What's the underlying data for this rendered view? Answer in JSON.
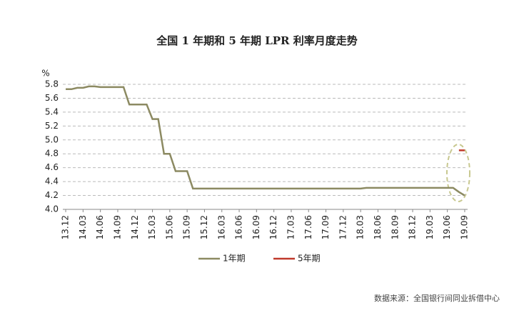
{
  "chart_data": {
    "type": "line",
    "title": "全国 1 年期和 5 年期 LPR 利率月度走势",
    "y_unit": "%",
    "source": "数据来源：全国银行间同业拆借中心",
    "categories": [
      "13.12",
      null,
      null,
      "14.03",
      null,
      null,
      "14.06",
      null,
      null,
      "14.09",
      null,
      null,
      "14.12",
      null,
      null,
      "15.03",
      null,
      null,
      "15.06",
      null,
      null,
      "15.09",
      null,
      null,
      "15.12",
      null,
      null,
      "16.03",
      null,
      null,
      "16.06",
      null,
      null,
      "16.09",
      null,
      null,
      "16.12",
      null,
      null,
      "17.03",
      null,
      null,
      "17.06",
      null,
      null,
      "17.09",
      null,
      null,
      "17.12",
      null,
      null,
      "18.03",
      null,
      null,
      "18.06",
      null,
      null,
      "18.09",
      null,
      null,
      "18.12",
      null,
      null,
      "19.03",
      null,
      null,
      "19.06",
      null,
      null,
      "19.09"
    ],
    "series": [
      {
        "name": "1年期",
        "color": "#8c8a62",
        "values": [
          5.73,
          5.73,
          5.75,
          5.75,
          5.77,
          5.77,
          5.76,
          5.76,
          5.76,
          5.76,
          5.76,
          5.51,
          5.51,
          5.51,
          5.51,
          5.3,
          5.3,
          4.8,
          4.8,
          4.55,
          4.55,
          4.55,
          4.3,
          4.3,
          4.3,
          4.3,
          4.3,
          4.3,
          4.3,
          4.3,
          4.3,
          4.3,
          4.3,
          4.3,
          4.3,
          4.3,
          4.3,
          4.3,
          4.3,
          4.3,
          4.3,
          4.3,
          4.3,
          4.3,
          4.3,
          4.3,
          4.3,
          4.3,
          4.3,
          4.3,
          4.3,
          4.3,
          4.31,
          4.31,
          4.31,
          4.31,
          4.31,
          4.31,
          4.31,
          4.31,
          4.31,
          4.31,
          4.31,
          4.31,
          4.31,
          4.31,
          4.31,
          4.31,
          4.25,
          4.2
        ]
      },
      {
        "name": "5年期",
        "color": "#c0392b",
        "values": [
          null,
          null,
          null,
          null,
          null,
          null,
          null,
          null,
          null,
          null,
          null,
          null,
          null,
          null,
          null,
          null,
          null,
          null,
          null,
          null,
          null,
          null,
          null,
          null,
          null,
          null,
          null,
          null,
          null,
          null,
          null,
          null,
          null,
          null,
          null,
          null,
          null,
          null,
          null,
          null,
          null,
          null,
          null,
          null,
          null,
          null,
          null,
          null,
          null,
          null,
          null,
          null,
          null,
          null,
          null,
          null,
          null,
          null,
          null,
          null,
          null,
          null,
          null,
          null,
          null,
          null,
          null,
          null,
          4.85,
          4.85
        ]
      }
    ],
    "ylim": [
      4.0,
      5.8
    ],
    "yticks": [
      {
        "value": 4.0,
        "label": "4.0"
      },
      4.2,
      4.4,
      4.6,
      4.8,
      {
        "value": 5.0,
        "label": "5.0"
      },
      5.2,
      5.4,
      5.6,
      5.8
    ],
    "grid": true
  }
}
